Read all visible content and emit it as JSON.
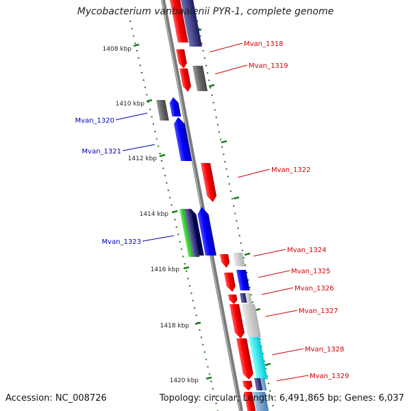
{
  "title": "Mycobacterium vanbaalenii PYR-1, complete genome",
  "footer": {
    "accession": "Accession: NC_008726",
    "summary": "Topology: circular; Length: 6,491,865 bp; Genes: 6,037"
  },
  "ticks": [
    {
      "label": "1408 kbp"
    },
    {
      "label": "1410 kbp"
    },
    {
      "label": "1412 kbp"
    },
    {
      "label": "1414 kbp"
    },
    {
      "label": "1416 kbp"
    },
    {
      "label": "1418 kbp"
    },
    {
      "label": "1420 kbp"
    }
  ],
  "genes": [
    {
      "name": "Mvan_1318",
      "color": "#d00000"
    },
    {
      "name": "Mvan_1319",
      "color": "#d00000"
    },
    {
      "name": "Mvan_1320",
      "color": "#0000b0"
    },
    {
      "name": "Mvan_1321",
      "color": "#0000b0"
    },
    {
      "name": "Mvan_1322",
      "color": "#d00000"
    },
    {
      "name": "Mvan_1323",
      "color": "#0000b0"
    },
    {
      "name": "Mvan_1324",
      "color": "#d00000"
    },
    {
      "name": "Mvan_1325",
      "color": "#d00000"
    },
    {
      "name": "Mvan_1326",
      "color": "#d00000"
    },
    {
      "name": "Mvan_1327",
      "color": "#d00000"
    },
    {
      "name": "Mvan_1328",
      "color": "#d00000"
    },
    {
      "name": "Mvan_1329",
      "color": "#d00000"
    }
  ],
  "colors": {
    "forward_gene": "#ff0000",
    "reverse_gene": "#0000ff",
    "other_gene": "#666666",
    "tick": "#1e7a1e",
    "backbone": "#808080"
  }
}
